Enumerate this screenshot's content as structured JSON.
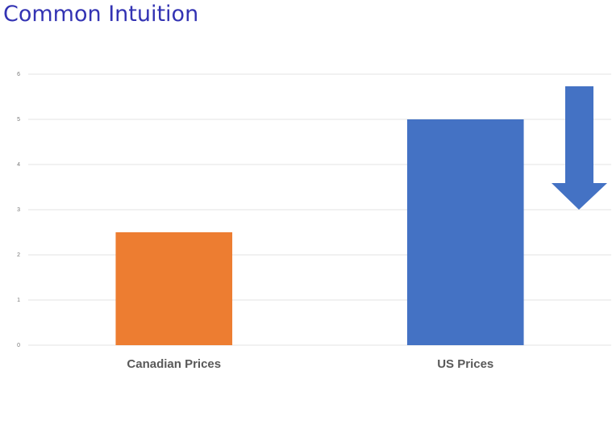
{
  "title": "Common Intuition",
  "chart_data": {
    "type": "bar",
    "categories": [
      "Canadian Prices",
      "US Prices"
    ],
    "values": [
      2.5,
      5
    ],
    "colors": [
      "#ed7d31",
      "#4472c4"
    ],
    "ylim": [
      0,
      6
    ],
    "yticks": [
      0,
      1,
      2,
      3,
      4,
      5,
      6
    ],
    "grid": true
  }
}
